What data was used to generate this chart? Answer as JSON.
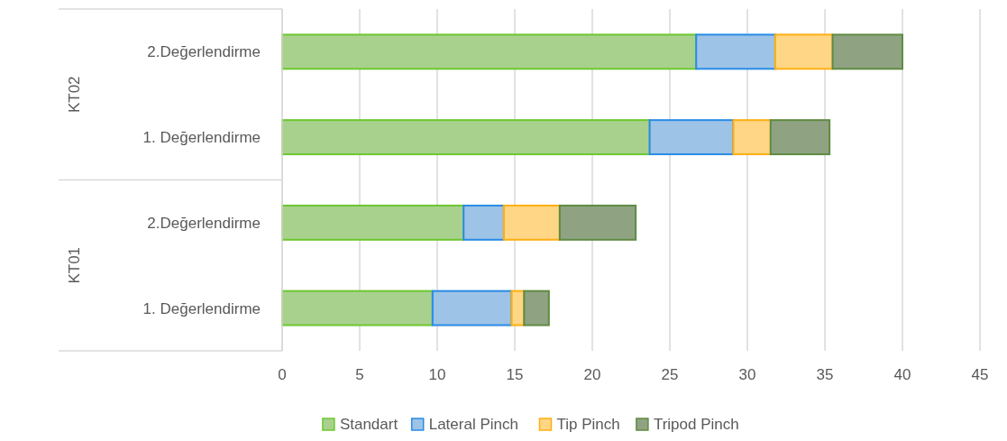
{
  "chart_data": {
    "type": "bar",
    "orientation": "horizontal",
    "stacked": true,
    "categories": [
      "2.Değerlendirme",
      "1. Değerlendirme",
      "2.Değerlendirme",
      "1. Değerlendirme"
    ],
    "series": [
      {
        "name": "Standart",
        "color": "#a9d18e",
        "values": [
          26.7,
          23.7,
          11.7,
          9.7
        ]
      },
      {
        "name": "Lateral Pinch",
        "color": "#9dc3e6",
        "values": [
          5.1,
          5.4,
          2.6,
          5.1
        ]
      },
      {
        "name": "Tip Pinch",
        "color": "#ffd685",
        "values": [
          3.7,
          2.4,
          3.6,
          0.8
        ]
      },
      {
        "name": "Tripod Pinch",
        "color": "#8fa382",
        "values": [
          4.5,
          3.8,
          4.9,
          1.6
        ]
      }
    ],
    "xlim": [
      0,
      45
    ],
    "xticks": [
      0,
      5,
      10,
      15,
      20,
      25,
      30,
      35,
      40,
      45
    ],
    "grid": "x",
    "legend": "bottom",
    "annotations": [
      "KT02",
      "KT01"
    ]
  }
}
